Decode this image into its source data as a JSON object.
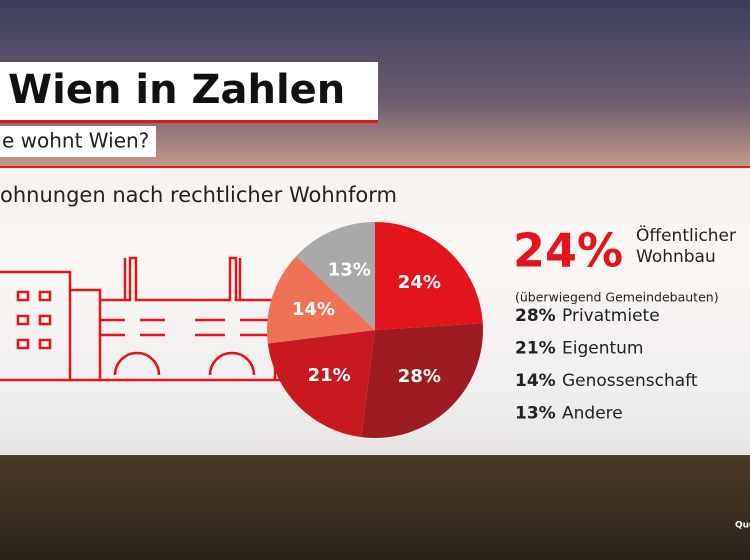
{
  "chart_data": {
    "type": "pie",
    "title": "Wien in Zahlen",
    "subtitle": "e wohnt Wien?",
    "heading": "ohnungen nach rechtlicher Wohnform",
    "categories": [
      "Öffentlicher Wohnbau",
      "Privatmiete",
      "Eigentum",
      "Genossenschaft",
      "Andere"
    ],
    "values": [
      24,
      28,
      21,
      14,
      13
    ],
    "value_labels": [
      "24%",
      "28%",
      "21%",
      "14%",
      "13%"
    ],
    "colors": [
      "#e3141c",
      "#9c1c22",
      "#c8191f",
      "#f07256",
      "#a9a9a9"
    ],
    "note": "(überwiegend Gemeindebauten)",
    "source": "Que"
  }
}
